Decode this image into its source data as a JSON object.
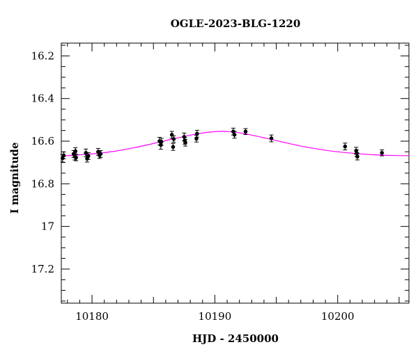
{
  "chart_data": {
    "type": "scatter",
    "title": "OGLE-2023-BLG-1220",
    "xlabel": "HJD - 2450000",
    "ylabel": "I magnitude",
    "xlim": [
      10177.5,
      10205.8
    ],
    "ylim": [
      17.36,
      16.14
    ],
    "y_inverted": true,
    "x_major_ticks": [
      10180,
      10190,
      10200
    ],
    "x_tick_labels": [
      "10180",
      "10190",
      "10200"
    ],
    "y_major_ticks": [
      16.2,
      16.4,
      16.6,
      16.8,
      17.0,
      17.2
    ],
    "y_tick_labels": [
      "16.2",
      "16.4",
      "16.6",
      "16.8",
      "17",
      "17.2"
    ],
    "grid": false,
    "colors": {
      "data": "#000000",
      "model": "#ff00ff",
      "axes": "#000000"
    },
    "series": [
      {
        "kind": "points_with_errorbars",
        "points": [
          {
            "x": 10177.6,
            "y": 16.68,
            "err": 0.018
          },
          {
            "x": 10177.7,
            "y": 16.667,
            "err": 0.016
          },
          {
            "x": 10178.5,
            "y": 16.66,
            "err": 0.016
          },
          {
            "x": 10178.6,
            "y": 16.672,
            "err": 0.016
          },
          {
            "x": 10178.65,
            "y": 16.647,
            "err": 0.016
          },
          {
            "x": 10178.7,
            "y": 16.677,
            "err": 0.015
          },
          {
            "x": 10179.5,
            "y": 16.655,
            "err": 0.018
          },
          {
            "x": 10179.6,
            "y": 16.682,
            "err": 0.016
          },
          {
            "x": 10179.7,
            "y": 16.67,
            "err": 0.016
          },
          {
            "x": 10180.5,
            "y": 16.65,
            "err": 0.016
          },
          {
            "x": 10180.6,
            "y": 16.665,
            "err": 0.016
          },
          {
            "x": 10180.7,
            "y": 16.66,
            "err": 0.016
          },
          {
            "x": 10185.5,
            "y": 16.6,
            "err": 0.018
          },
          {
            "x": 10185.6,
            "y": 16.618,
            "err": 0.02
          },
          {
            "x": 10185.65,
            "y": 16.603,
            "err": 0.016
          },
          {
            "x": 10186.5,
            "y": 16.57,
            "err": 0.016
          },
          {
            "x": 10186.6,
            "y": 16.627,
            "err": 0.016
          },
          {
            "x": 10186.65,
            "y": 16.59,
            "err": 0.015
          },
          {
            "x": 10187.5,
            "y": 16.58,
            "err": 0.018
          },
          {
            "x": 10187.55,
            "y": 16.598,
            "err": 0.016
          },
          {
            "x": 10187.6,
            "y": 16.607,
            "err": 0.016
          },
          {
            "x": 10188.5,
            "y": 16.588,
            "err": 0.016
          },
          {
            "x": 10188.55,
            "y": 16.565,
            "err": 0.016
          },
          {
            "x": 10191.5,
            "y": 16.555,
            "err": 0.016
          },
          {
            "x": 10191.6,
            "y": 16.57,
            "err": 0.016
          },
          {
            "x": 10192.5,
            "y": 16.555,
            "err": 0.014
          },
          {
            "x": 10194.6,
            "y": 16.587,
            "err": 0.016
          },
          {
            "x": 10200.6,
            "y": 16.625,
            "err": 0.016
          },
          {
            "x": 10201.5,
            "y": 16.645,
            "err": 0.016
          },
          {
            "x": 10201.55,
            "y": 16.657,
            "err": 0.016
          },
          {
            "x": 10201.6,
            "y": 16.672,
            "err": 0.016
          },
          {
            "x": 10203.6,
            "y": 16.655,
            "err": 0.014
          }
        ]
      },
      {
        "kind": "model_curve",
        "x": [
          10177.5,
          10179,
          10180.5,
          10182,
          10183.5,
          10185,
          10186.5,
          10188,
          10189.5,
          10190.5,
          10191.5,
          10192.5,
          10194,
          10195.5,
          10197,
          10198.5,
          10200,
          10201.5,
          10203,
          10204.5,
          10205.8
        ],
        "y": [
          16.67,
          16.664,
          16.657,
          16.646,
          16.63,
          16.611,
          16.591,
          16.572,
          16.558,
          16.554,
          16.557,
          16.566,
          16.584,
          16.604,
          16.623,
          16.638,
          16.65,
          16.658,
          16.664,
          16.667,
          16.668
        ]
      }
    ]
  }
}
